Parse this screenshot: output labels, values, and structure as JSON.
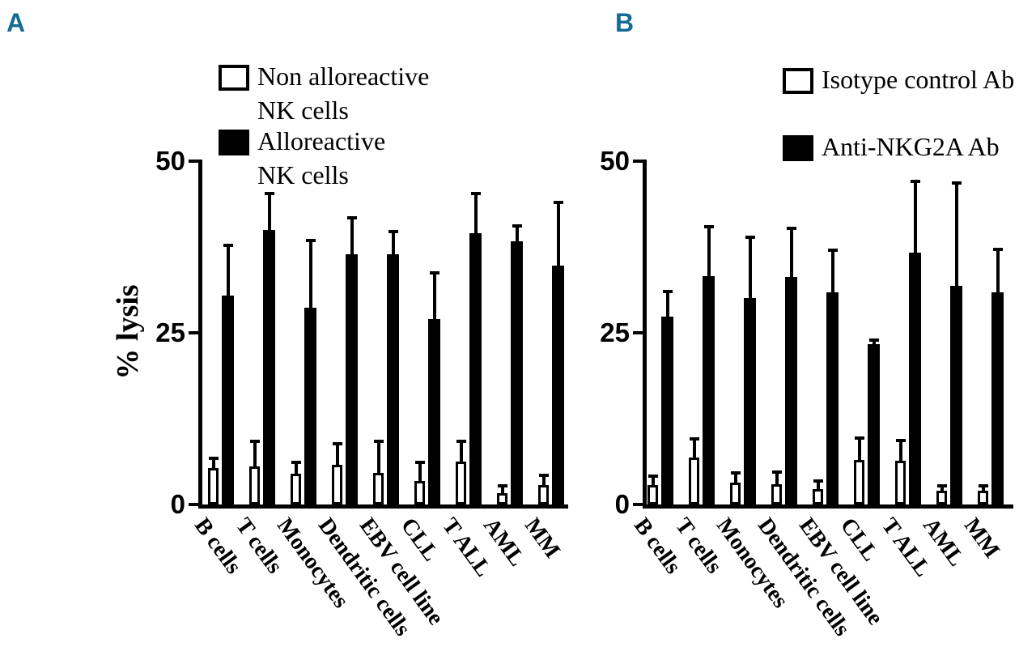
{
  "colors": {
    "panel_label": "#166a96",
    "ink": "#000000",
    "background": "#ffffff",
    "open_bar_fill": "#ffffff",
    "solid_bar_fill": "#000000"
  },
  "panels": [
    {
      "panel_label": "A",
      "ylabel": "% lysis"
    },
    {
      "panel_label": "B",
      "ylabel": ""
    }
  ],
  "chart_data": [
    {
      "type": "bar",
      "panel": "A",
      "title": "",
      "xlabel": "",
      "ylabel": "% lysis",
      "ylim": [
        0,
        50
      ],
      "yticks": [
        0,
        25,
        50
      ],
      "grid": false,
      "legend_position": "top",
      "error_bars": "sd-upper",
      "categories": [
        "B cells",
        "T cells",
        "Monocytes",
        "Dendritic cells",
        "EBV cell line",
        "CLL",
        "T ALL",
        "AML",
        "MM"
      ],
      "series": [
        {
          "name": "Non alloreactive NK cells",
          "legend_lines": [
            "Non alloreactive",
            "NK cells"
          ],
          "fill": "open",
          "values": [
            5.3,
            5.5,
            4.5,
            5.8,
            4.6,
            3.4,
            6.2,
            1.7,
            2.8
          ],
          "errors": [
            1.7,
            3.9,
            1.9,
            3.3,
            4.8,
            3.0,
            3.2,
            1.2,
            1.7
          ]
        },
        {
          "name": "Alloreactive NK cells",
          "legend_lines": [
            "Alloreactive",
            "NK cells"
          ],
          "fill": "solid",
          "values": [
            30.4,
            40.0,
            28.7,
            36.4,
            36.4,
            27.0,
            39.5,
            38.3,
            34.8
          ],
          "errors": [
            7.6,
            5.5,
            10.0,
            5.6,
            3.6,
            7.0,
            6.0,
            2.5,
            9.4
          ]
        }
      ]
    },
    {
      "type": "bar",
      "panel": "B",
      "title": "",
      "xlabel": "",
      "ylabel": "",
      "ylim": [
        0,
        50
      ],
      "yticks": [
        0,
        25,
        50
      ],
      "grid": false,
      "legend_position": "top",
      "error_bars": "sd-upper",
      "categories": [
        "B cells",
        "T cells",
        "Monocytes",
        "Dendritic cells",
        "EBV cell line",
        "CLL",
        "T ALL",
        "AML",
        "MM"
      ],
      "series": [
        {
          "name": "Isotype control Ab",
          "legend_lines": [
            "Isotype control Ab"
          ],
          "fill": "open",
          "values": [
            2.8,
            6.8,
            3.2,
            3.0,
            2.2,
            6.5,
            6.4,
            2.0,
            2.0
          ],
          "errors": [
            1.6,
            3.0,
            1.6,
            2.0,
            1.4,
            3.4,
            3.2,
            1.0,
            1.0
          ]
        },
        {
          "name": "Anti-NKG2A Ab",
          "legend_lines": [
            "Anti-NKG2A Ab"
          ],
          "fill": "solid",
          "values": [
            27.4,
            33.2,
            30.1,
            33.1,
            30.9,
            23.4,
            36.7,
            31.8,
            30.9
          ],
          "errors": [
            3.9,
            7.5,
            9.0,
            7.4,
            6.4,
            0.8,
            10.6,
            15.3,
            6.5
          ]
        }
      ]
    }
  ]
}
